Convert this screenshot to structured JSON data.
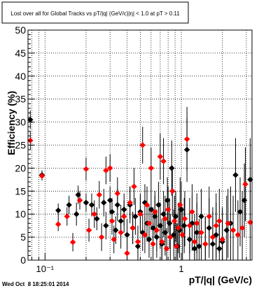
{
  "chart_data": {
    "type": "scatter",
    "title": "Lost over all for Global Tracks vs pT/|q| (GeV/c)|η| < 1.0 at pT > 0.11",
    "xlabel": "pT/|q|  (GeV/c)",
    "ylabel": "Efficiency (%)",
    "xscale": "log",
    "xlim": [
      0.075,
      3.3
    ],
    "ylim": [
      0,
      50
    ],
    "xticks": [
      {
        "v": 0.1,
        "label": "10⁻¹"
      },
      {
        "v": 1,
        "label": "1"
      }
    ],
    "yticks": [
      0,
      5,
      10,
      15,
      20,
      25,
      30,
      35,
      40,
      45,
      50
    ],
    "grid": true,
    "legend": "none",
    "series": [
      {
        "color": "#000000",
        "points": [
          [
            0.078,
            30.5,
            2.0
          ],
          [
            0.095,
            18.5,
            1.0
          ],
          [
            0.125,
            10.8,
            1.5
          ],
          [
            0.15,
            12.0,
            2.0
          ],
          [
            0.17,
            10.0,
            2.5
          ],
          [
            0.175,
            14.2,
            2.0
          ],
          [
            0.2,
            12.5,
            2.0
          ],
          [
            0.22,
            12.0,
            2.5
          ],
          [
            0.24,
            9.0,
            2.5
          ],
          [
            0.27,
            12.5,
            3.0
          ],
          [
            0.28,
            7.5,
            3.0
          ],
          [
            0.3,
            13.0,
            3.0
          ],
          [
            0.31,
            10.5,
            3.0
          ],
          [
            0.33,
            6.5,
            3.0
          ],
          [
            0.34,
            12.0,
            3.5
          ],
          [
            0.36,
            8.5,
            3.5
          ],
          [
            0.38,
            11.0,
            3.5
          ],
          [
            0.4,
            5.5,
            3.5
          ],
          [
            0.42,
            12.0,
            4.0
          ],
          [
            0.44,
            7.0,
            3.5
          ],
          [
            0.46,
            9.5,
            4.0
          ],
          [
            0.48,
            3.0,
            3.5
          ],
          [
            0.5,
            10.5,
            4.0
          ],
          [
            0.52,
            6.0,
            4.0
          ],
          [
            0.54,
            12.5,
            4.0
          ],
          [
            0.56,
            8.0,
            4.0
          ],
          [
            0.58,
            4.5,
            4.0
          ],
          [
            0.6,
            11.0,
            4.5
          ],
          [
            0.62,
            7.0,
            4.5
          ],
          [
            0.64,
            9.5,
            4.5
          ],
          [
            0.66,
            5.0,
            4.5
          ],
          [
            0.68,
            12.0,
            5.0
          ],
          [
            0.7,
            7.5,
            5.0
          ],
          [
            0.72,
            3.5,
            4.5
          ],
          [
            0.74,
            10.0,
            5.0
          ],
          [
            0.76,
            6.0,
            5.0
          ],
          [
            0.79,
            13.0,
            5.0
          ],
          [
            0.82,
            8.0,
            5.5
          ],
          [
            0.85,
            20.0,
            6.0
          ],
          [
            0.88,
            5.5,
            5.5
          ],
          [
            0.91,
            9.5,
            5.5
          ],
          [
            0.94,
            3.0,
            5.0
          ],
          [
            0.97,
            6.5,
            6.0
          ],
          [
            1.0,
            11.0,
            6.0
          ],
          [
            1.05,
            7.5,
            6.0
          ],
          [
            1.1,
            24.0,
            7.0
          ],
          [
            1.15,
            4.5,
            6.0
          ],
          [
            1.2,
            8.0,
            6.0
          ],
          [
            1.25,
            2.5,
            6.0
          ],
          [
            1.3,
            6.0,
            6.5
          ],
          [
            1.35,
            3.0,
            6.0
          ],
          [
            1.4,
            9.5,
            6.0
          ],
          [
            1.5,
            3.5,
            6.0
          ],
          [
            1.6,
            7.0,
            6.5
          ],
          [
            1.7,
            3.5,
            7.0
          ],
          [
            1.8,
            5.5,
            7.0
          ],
          [
            1.9,
            2.5,
            6.5
          ],
          [
            2.0,
            4.0,
            7.0
          ],
          [
            2.15,
            6.5,
            7.5
          ],
          [
            2.3,
            8.0,
            8.0
          ],
          [
            2.5,
            18.5,
            8.0
          ],
          [
            2.7,
            10.5,
            7.5
          ],
          [
            2.9,
            13.0,
            8.0
          ],
          [
            3.2,
            17.5,
            9.0
          ]
        ]
      },
      {
        "color": "#ff0000",
        "points": [
          [
            0.078,
            26.0,
            2.0
          ],
          [
            0.095,
            18.3,
            1.0
          ],
          [
            0.125,
            7.8,
            1.5
          ],
          [
            0.145,
            9.5,
            2.0
          ],
          [
            0.16,
            3.9,
            2.0
          ],
          [
            0.18,
            13.0,
            2.0
          ],
          [
            0.2,
            19.8,
            2.5
          ],
          [
            0.21,
            6.5,
            2.5
          ],
          [
            0.23,
            10.0,
            3.0
          ],
          [
            0.25,
            14.2,
            3.0
          ],
          [
            0.26,
            5.0,
            3.0
          ],
          [
            0.28,
            19.5,
            3.0
          ],
          [
            0.3,
            20.0,
            3.0
          ],
          [
            0.31,
            8.5,
            3.0
          ],
          [
            0.32,
            4.5,
            3.0
          ],
          [
            0.34,
            14.5,
            3.5
          ],
          [
            0.36,
            6.0,
            3.5
          ],
          [
            0.38,
            9.5,
            3.5
          ],
          [
            0.4,
            1.5,
            3.5
          ],
          [
            0.42,
            12.5,
            3.5
          ],
          [
            0.44,
            7.0,
            3.5
          ],
          [
            0.45,
            16.0,
            4.0
          ],
          [
            0.48,
            4.0,
            3.5
          ],
          [
            0.5,
            10.0,
            4.0
          ],
          [
            0.52,
            25.0,
            4.0
          ],
          [
            0.54,
            5.5,
            4.0
          ],
          [
            0.56,
            12.0,
            4.0
          ],
          [
            0.58,
            8.0,
            4.0
          ],
          [
            0.6,
            20.0,
            4.5
          ],
          [
            0.62,
            3.5,
            4.5
          ],
          [
            0.64,
            10.5,
            4.5
          ],
          [
            0.66,
            6.5,
            4.5
          ],
          [
            0.7,
            22.5,
            5.0
          ],
          [
            0.72,
            4.0,
            5.0
          ],
          [
            0.74,
            21.5,
            5.0
          ],
          [
            0.76,
            9.0,
            5.0
          ],
          [
            0.78,
            2.5,
            4.5
          ],
          [
            0.8,
            11.0,
            5.0
          ],
          [
            0.83,
            5.0,
            5.0
          ],
          [
            0.86,
            15.0,
            5.5
          ],
          [
            0.89,
            8.5,
            5.5
          ],
          [
            0.92,
            3.0,
            5.0
          ],
          [
            0.95,
            7.0,
            5.5
          ],
          [
            0.98,
            12.0,
            6.0
          ],
          [
            1.02,
            5.5,
            6.0
          ],
          [
            1.06,
            9.0,
            6.0
          ],
          [
            1.1,
            26.3,
            7.0
          ],
          [
            1.15,
            7.5,
            6.0
          ],
          [
            1.2,
            10.5,
            6.0
          ],
          [
            1.25,
            4.0,
            6.0
          ],
          [
            1.3,
            8.0,
            6.5
          ],
          [
            1.4,
            6.0,
            6.0
          ],
          [
            1.5,
            3.5,
            6.0
          ],
          [
            1.6,
            9.5,
            6.5
          ],
          [
            1.7,
            5.0,
            6.5
          ],
          [
            1.8,
            7.5,
            7.0
          ],
          [
            1.9,
            8.5,
            7.0
          ],
          [
            2.0,
            4.5,
            7.0
          ],
          [
            2.2,
            8.0,
            7.5
          ],
          [
            2.4,
            6.5,
            7.5
          ],
          [
            2.6,
            5.5,
            7.5
          ],
          [
            2.8,
            7.0,
            8.0
          ],
          [
            2.95,
            16.5,
            8.0
          ],
          [
            3.2,
            8.2,
            8.5
          ]
        ]
      }
    ],
    "footer": "Wed Oct  8 18:25:01 2014"
  }
}
